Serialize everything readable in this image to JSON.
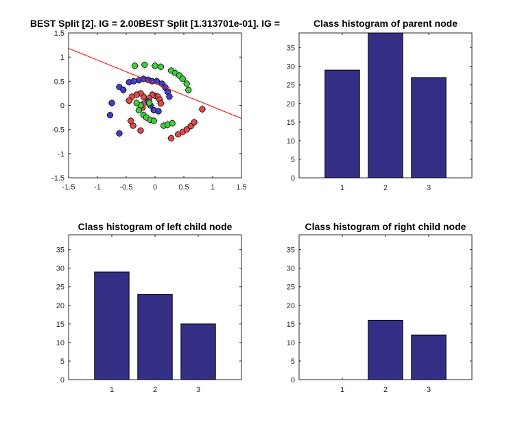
{
  "colors": {
    "bar": "#342f85",
    "split_line": "#ff0000",
    "axis": "#262626",
    "class_1": "#e04a4a",
    "class_2": "#3e3ec8",
    "class_3": "#3cd03c",
    "marker_edge": "#000000"
  },
  "chart_data": [
    {
      "id": "scatter",
      "type": "scatter",
      "title": "BEST Split [2]. IG = 2.00BEST Split [1.313701e-01]. IG =",
      "xlim": [
        -1.5,
        1.5
      ],
      "ylim": [
        -1.5,
        1.5
      ],
      "xticks": [
        "-1.5",
        "-1",
        "-0.5",
        "0",
        "0.5",
        "1",
        "1.5"
      ],
      "yticks": [
        "1.5",
        "1",
        "0.5",
        "0",
        "-0.5",
        "-1",
        "-1.5"
      ],
      "xtick_values": [
        -1.5,
        -1,
        -0.5,
        0,
        0.5,
        1,
        1.5
      ],
      "ytick_values": [
        1.5,
        1,
        0.5,
        0,
        -0.5,
        -1,
        -1.5
      ],
      "grid": false,
      "split_line": {
        "x": [
          -1.5,
          1.5
        ],
        "y": [
          1.18,
          -0.27
        ]
      },
      "series": [
        {
          "class": 1,
          "points": [
            [
              0.0,
              0.2
            ],
            [
              -0.05,
              0.22
            ],
            [
              0.05,
              0.18
            ],
            [
              0.08,
              0.12
            ],
            [
              0.1,
              0.04
            ],
            [
              -0.1,
              0.15
            ],
            [
              -0.15,
              0.1
            ],
            [
              -0.2,
              0.03
            ],
            [
              -0.22,
              -0.05
            ],
            [
              -0.2,
              0.18
            ],
            [
              -0.25,
              0.25
            ],
            [
              -0.32,
              0.22
            ],
            [
              -0.4,
              0.18
            ],
            [
              -0.45,
              0.1
            ],
            [
              -0.42,
              -0.32
            ],
            [
              -0.38,
              -0.42
            ],
            [
              -0.25,
              -0.52
            ],
            [
              0.28,
              -0.68
            ],
            [
              0.4,
              -0.6
            ],
            [
              0.48,
              -0.55
            ],
            [
              0.55,
              -0.5
            ],
            [
              0.62,
              -0.43
            ],
            [
              0.68,
              -0.35
            ],
            [
              0.82,
              -0.08
            ]
          ]
        },
        {
          "class": 2,
          "points": [
            [
              -0.75,
              0.05
            ],
            [
              -0.78,
              -0.2
            ],
            [
              -0.62,
              -0.58
            ],
            [
              -0.62,
              0.38
            ],
            [
              -0.55,
              0.32
            ],
            [
              -0.45,
              0.48
            ],
            [
              -0.37,
              0.5
            ],
            [
              -0.28,
              0.52
            ],
            [
              -0.2,
              0.55
            ],
            [
              -0.12,
              0.53
            ],
            [
              -0.05,
              0.5
            ],
            [
              0.03,
              0.5
            ],
            [
              0.12,
              0.45
            ],
            [
              0.18,
              0.37
            ],
            [
              0.22,
              0.28
            ],
            [
              0.25,
              0.18
            ],
            [
              -0.08,
              0.0
            ],
            [
              -0.02,
              -0.1
            ],
            [
              0.06,
              -0.12
            ],
            [
              -0.12,
              0.08
            ]
          ]
        },
        {
          "class": 3,
          "points": [
            [
              -0.35,
              0.82
            ],
            [
              -0.18,
              0.84
            ],
            [
              0.0,
              0.82
            ],
            [
              0.1,
              0.8
            ],
            [
              0.28,
              0.72
            ],
            [
              0.35,
              0.67
            ],
            [
              0.42,
              0.62
            ],
            [
              0.48,
              0.55
            ],
            [
              0.55,
              0.45
            ],
            [
              0.58,
              0.32
            ],
            [
              -0.25,
              0.0
            ],
            [
              -0.28,
              -0.1
            ],
            [
              -0.32,
              0.05
            ],
            [
              -0.1,
              0.05
            ],
            [
              -0.2,
              -0.2
            ],
            [
              -0.15,
              -0.25
            ],
            [
              -0.08,
              -0.3
            ],
            [
              -0.02,
              -0.32
            ],
            [
              0.15,
              -0.42
            ],
            [
              0.22,
              -0.4
            ],
            [
              0.3,
              -0.37
            ]
          ]
        }
      ]
    },
    {
      "id": "parent",
      "type": "bar",
      "title": "Class histogram of parent node",
      "categories": [
        "1",
        "2",
        "3"
      ],
      "values": [
        29,
        39,
        27
      ],
      "ylim": [
        0,
        39
      ],
      "yticks": [
        "0",
        "5",
        "10",
        "15",
        "20",
        "25",
        "30",
        "35"
      ],
      "ytick_values": [
        0,
        5,
        10,
        15,
        20,
        25,
        30,
        35
      ]
    },
    {
      "id": "left",
      "type": "bar",
      "title": "Class histogram of left child node",
      "categories": [
        "1",
        "2",
        "3"
      ],
      "values": [
        29,
        23,
        15
      ],
      "ylim": [
        0,
        39
      ],
      "yticks": [
        "0",
        "5",
        "10",
        "15",
        "20",
        "25",
        "30",
        "35"
      ],
      "ytick_values": [
        0,
        5,
        10,
        15,
        20,
        25,
        30,
        35
      ]
    },
    {
      "id": "right",
      "type": "bar",
      "title": "Class histogram of right child node",
      "categories": [
        "1",
        "2",
        "3"
      ],
      "values": [
        0,
        16,
        12
      ],
      "ylim": [
        0,
        39
      ],
      "yticks": [
        "0",
        "5",
        "10",
        "15",
        "20",
        "25",
        "30",
        "35"
      ],
      "ytick_values": [
        0,
        5,
        10,
        15,
        20,
        25,
        30,
        35
      ]
    }
  ]
}
